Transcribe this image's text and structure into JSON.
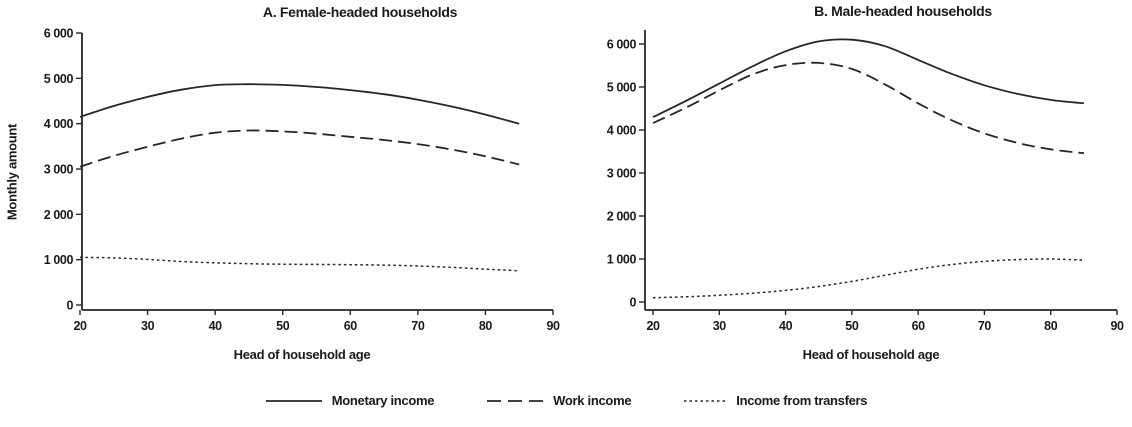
{
  "figure": {
    "y_axis_label": "Monthly amount"
  },
  "legend": {
    "items": [
      {
        "label": "Monetary income",
        "style": "solid"
      },
      {
        "label": "Work income",
        "style": "dashed"
      },
      {
        "label": "Income from transfers",
        "style": "dotted"
      }
    ]
  },
  "chart_data": [
    {
      "type": "line",
      "panel": "A",
      "title": "A. Female-headed households",
      "xlabel": "Head of household age",
      "ylabel": "Monthly amount",
      "xlim": [
        20,
        90
      ],
      "ylim": [
        0,
        6000
      ],
      "grid": false,
      "x_ticks": [
        20,
        30,
        40,
        50,
        60,
        70,
        80,
        90
      ],
      "x_tick_labels": [
        "20",
        "30",
        "40",
        "50",
        "60",
        "70",
        "80",
        "90"
      ],
      "y_ticks": [
        0,
        1000,
        2000,
        3000,
        4000,
        5000,
        6000
      ],
      "y_tick_labels": [
        "0",
        "1 000",
        "2 000",
        "3 000",
        "4 000",
        "5 000",
        "6 000"
      ],
      "x": [
        20,
        25,
        30,
        35,
        40,
        45,
        50,
        55,
        60,
        65,
        70,
        75,
        80,
        85
      ],
      "series": [
        {
          "name": "Monetary income",
          "style": "solid",
          "values": [
            4150,
            4390,
            4590,
            4750,
            4850,
            4870,
            4855,
            4810,
            4740,
            4650,
            4530,
            4380,
            4200,
            4000
          ]
        },
        {
          "name": "Work income",
          "style": "dashed",
          "values": [
            3050,
            3290,
            3490,
            3670,
            3800,
            3850,
            3830,
            3780,
            3710,
            3640,
            3550,
            3430,
            3280,
            3100
          ]
        },
        {
          "name": "Income from transfers",
          "style": "dotted",
          "values": [
            1050,
            1040,
            1005,
            960,
            930,
            910,
            900,
            895,
            890,
            880,
            860,
            830,
            790,
            755
          ]
        }
      ]
    },
    {
      "type": "line",
      "panel": "B",
      "title": "B. Male-headed households",
      "xlabel": "Head of household age",
      "ylabel": "",
      "xlim": [
        20,
        90
      ],
      "ylim": [
        0,
        6000
      ],
      "grid": false,
      "x_ticks": [
        20,
        30,
        40,
        50,
        60,
        70,
        80,
        90
      ],
      "x_tick_labels": [
        "20",
        "30",
        "40",
        "50",
        "60",
        "70",
        "80",
        "90"
      ],
      "y_ticks": [
        0,
        1000,
        2000,
        3000,
        4000,
        5000,
        6000
      ],
      "y_tick_labels": [
        "0",
        "1 000",
        "2 000",
        "3 000",
        "4 000",
        "5 000",
        "6 000"
      ],
      "x": [
        20,
        25,
        30,
        35,
        40,
        45,
        50,
        55,
        60,
        65,
        70,
        75,
        80,
        85
      ],
      "series": [
        {
          "name": "Monetary income",
          "style": "solid",
          "values": [
            4300,
            4680,
            5080,
            5480,
            5830,
            6060,
            6100,
            5950,
            5630,
            5310,
            5040,
            4840,
            4700,
            4620
          ]
        },
        {
          "name": "Work income",
          "style": "dashed",
          "values": [
            4160,
            4520,
            4920,
            5290,
            5510,
            5560,
            5420,
            5060,
            4620,
            4230,
            3920,
            3700,
            3550,
            3460
          ]
        },
        {
          "name": "Income from transfers",
          "style": "dotted",
          "values": [
            100,
            120,
            155,
            205,
            270,
            360,
            480,
            620,
            760,
            870,
            945,
            985,
            1000,
            975
          ]
        }
      ]
    }
  ]
}
